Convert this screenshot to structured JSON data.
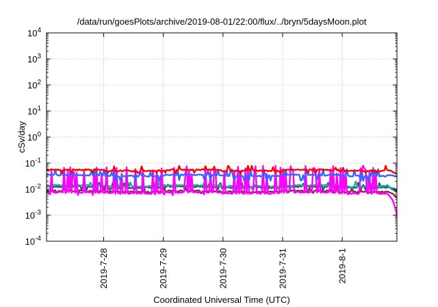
{
  "chart_data": {
    "type": "line",
    "title": "/data/run/goesPlots/archive/2019-08-01/22:00/flux/../bryn/5daysMoon.plot",
    "xlabel": "Coordinated Universal Time (UTC)",
    "ylabel": "cSv/day",
    "yscale": "log",
    "ylim": [
      0.0001,
      10000
    ],
    "xlim": [
      "2019-07-27T01:00",
      "2019-08-01T22:00"
    ],
    "grid": true,
    "legend": "none",
    "y_ticks": [
      {
        "base": "10",
        "exp": "-4",
        "value": 0.0001
      },
      {
        "base": "10",
        "exp": "-3",
        "value": 0.001
      },
      {
        "base": "10",
        "exp": "-2",
        "value": 0.01
      },
      {
        "base": "10",
        "exp": "-1",
        "value": 0.1
      },
      {
        "base": "10",
        "exp": "0",
        "value": 1
      },
      {
        "base": "10",
        "exp": "1",
        "value": 10
      },
      {
        "base": "10",
        "exp": "2",
        "value": 100
      },
      {
        "base": "10",
        "exp": "3",
        "value": 1000
      },
      {
        "base": "10",
        "exp": "4",
        "value": 10000
      }
    ],
    "x_ticks": [
      {
        "label": "2019-7-28",
        "date": "2019-07-28T00:00"
      },
      {
        "label": "2019-7-29",
        "date": "2019-07-29T00:00"
      },
      {
        "label": "2019-7-30",
        "date": "2019-07-30T00:00"
      },
      {
        "label": "2019-7-31",
        "date": "2019-07-31T00:00"
      },
      {
        "label": "2019-8-1",
        "date": "2019-08-01T00:00"
      }
    ],
    "series": [
      {
        "color": "#ff0000",
        "base": 0.055,
        "dip": 0.042,
        "spike": 0.08,
        "end": 0.04
      },
      {
        "color": "#3366ff",
        "base": 0.035,
        "dip": 0.022,
        "spike": 0.06,
        "end": 0.03
      },
      {
        "color": "#1ab394",
        "base": 0.014,
        "dip": 0.011,
        "spike": 0.02,
        "end": 0.009
      },
      {
        "color": "#2f4f7f",
        "base": 0.0125,
        "dip": 0.01,
        "spike": 0.018,
        "end": 0.008
      },
      {
        "color": "#8b2252",
        "base": 0.0085,
        "dip": 0.0075,
        "spike": 0.012,
        "end": 0.005
      },
      {
        "color": "#ff00ff",
        "base": 0.0075,
        "dip": 0.0065,
        "spike": 0.08,
        "end": 0.0009
      }
    ]
  }
}
